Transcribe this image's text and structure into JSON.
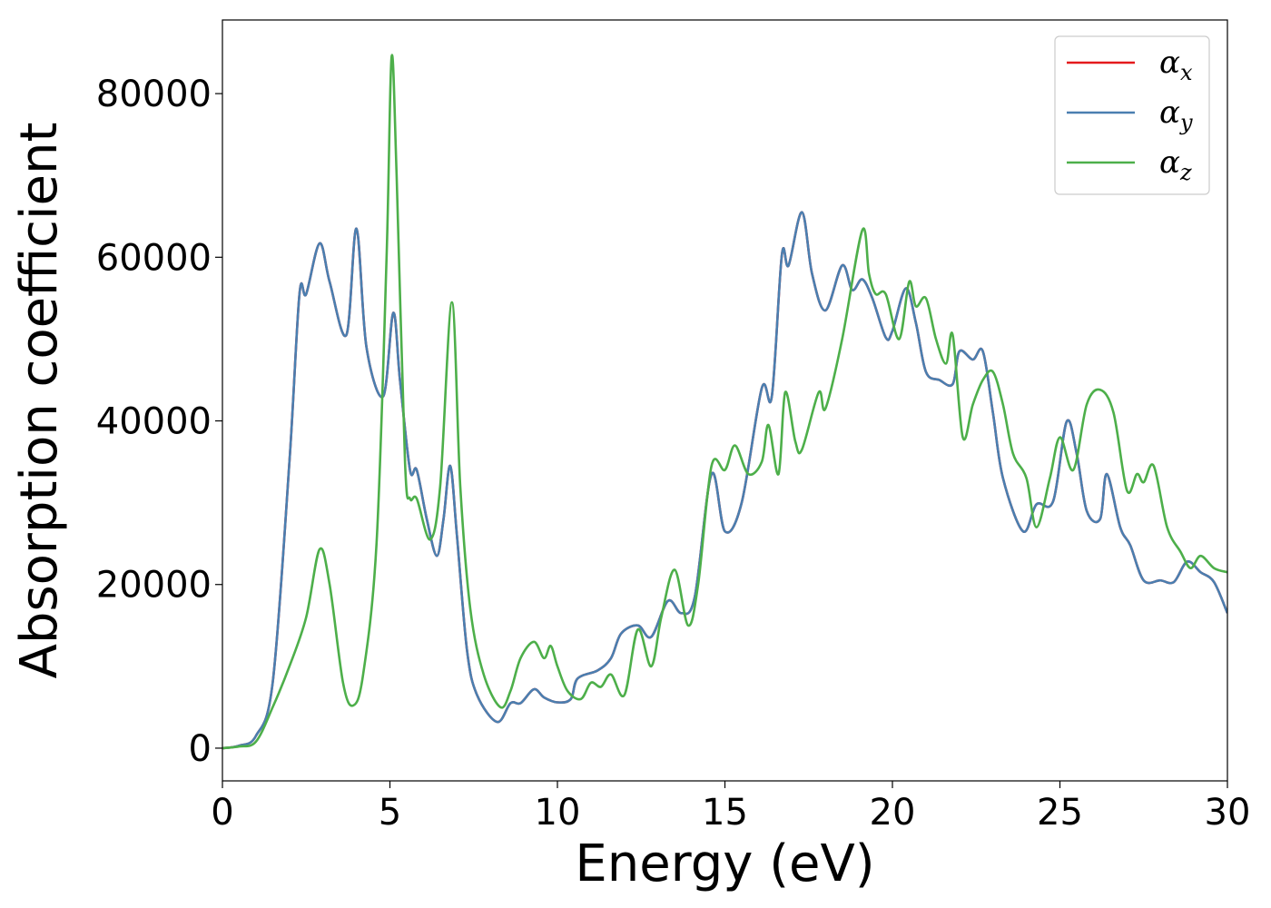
{
  "chart_data": {
    "type": "line",
    "title": "",
    "xlabel": "Energy (eV)",
    "ylabel": "Absorption coefficient",
    "xlim": [
      0,
      30
    ],
    "ylim": [
      -4000,
      89000
    ],
    "xticks": [
      0,
      5,
      10,
      15,
      20,
      25,
      30
    ],
    "xtick_labels": [
      "0",
      "5",
      "10",
      "15",
      "20",
      "25",
      "30"
    ],
    "yticks": [
      0,
      20000,
      40000,
      60000,
      80000
    ],
    "ytick_labels": [
      "0",
      "20000",
      "40000",
      "60000",
      "80000"
    ],
    "grid": false,
    "legend_position": "top-right",
    "series": [
      {
        "name": "α_x",
        "symbol": "α",
        "subscript": "x",
        "color": "#e41a1c",
        "points": [
          [
            0,
            0
          ],
          [
            0.5,
            300
          ],
          [
            1,
            1500
          ],
          [
            1.5,
            8000
          ],
          [
            2,
            35000
          ],
          [
            2.3,
            55500
          ],
          [
            2.5,
            55500
          ],
          [
            2.9,
            61700
          ],
          [
            3.2,
            57000
          ],
          [
            3.7,
            50500
          ],
          [
            4.0,
            63500
          ],
          [
            4.3,
            49000
          ],
          [
            4.8,
            43000
          ],
          [
            5.1,
            53200
          ],
          [
            5.3,
            45000
          ],
          [
            5.6,
            34000
          ],
          [
            5.8,
            34000
          ],
          [
            6.1,
            28000
          ],
          [
            6.4,
            23500
          ],
          [
            6.6,
            28000
          ],
          [
            6.8,
            34500
          ],
          [
            7.0,
            26000
          ],
          [
            7.3,
            12000
          ],
          [
            7.6,
            6500
          ],
          [
            8.2,
            3200
          ],
          [
            8.6,
            5500
          ],
          [
            8.9,
            5500
          ],
          [
            9.3,
            7200
          ],
          [
            9.6,
            6200
          ],
          [
            10.0,
            5600
          ],
          [
            10.4,
            6000
          ],
          [
            10.6,
            8500
          ],
          [
            11.2,
            9500
          ],
          [
            11.6,
            11000
          ],
          [
            11.9,
            14000
          ],
          [
            12.4,
            15000
          ],
          [
            12.8,
            13600
          ],
          [
            13.3,
            18000
          ],
          [
            13.7,
            16500
          ],
          [
            14.1,
            18500
          ],
          [
            14.6,
            33500
          ],
          [
            15.0,
            26500
          ],
          [
            15.5,
            30000
          ],
          [
            16.1,
            44000
          ],
          [
            16.4,
            43000
          ],
          [
            16.7,
            60300
          ],
          [
            16.9,
            59000
          ],
          [
            17.3,
            65500
          ],
          [
            17.6,
            58000
          ],
          [
            18.0,
            53500
          ],
          [
            18.5,
            59000
          ],
          [
            18.8,
            56000
          ],
          [
            19.1,
            57300
          ],
          [
            19.4,
            55000
          ],
          [
            19.8,
            50200
          ],
          [
            20.0,
            51000
          ],
          [
            20.4,
            56200
          ],
          [
            20.7,
            52000
          ],
          [
            21.0,
            46000
          ],
          [
            21.4,
            45000
          ],
          [
            21.8,
            44500
          ],
          [
            22.0,
            48500
          ],
          [
            22.4,
            47500
          ],
          [
            22.7,
            48500
          ],
          [
            23.0,
            41000
          ],
          [
            23.3,
            33000
          ],
          [
            23.9,
            26500
          ],
          [
            24.3,
            29800
          ],
          [
            24.8,
            30200
          ],
          [
            25.2,
            39900
          ],
          [
            25.5,
            36000
          ],
          [
            25.8,
            29000
          ],
          [
            26.2,
            28000
          ],
          [
            26.4,
            33500
          ],
          [
            26.8,
            27000
          ],
          [
            27.1,
            24800
          ],
          [
            27.5,
            20500
          ],
          [
            28.0,
            20500
          ],
          [
            28.4,
            20300
          ],
          [
            28.8,
            22800
          ],
          [
            29.2,
            21500
          ],
          [
            29.6,
            20300
          ],
          [
            30.0,
            16500
          ]
        ]
      },
      {
        "name": "α_y",
        "symbol": "α",
        "subscript": "y",
        "color": "#4a7fb0",
        "points": [
          [
            0,
            0
          ],
          [
            0.5,
            300
          ],
          [
            1,
            1500
          ],
          [
            1.5,
            8000
          ],
          [
            2,
            35000
          ],
          [
            2.3,
            55500
          ],
          [
            2.5,
            55500
          ],
          [
            2.9,
            61700
          ],
          [
            3.2,
            57000
          ],
          [
            3.7,
            50500
          ],
          [
            4.0,
            63500
          ],
          [
            4.3,
            49000
          ],
          [
            4.8,
            43000
          ],
          [
            5.1,
            53200
          ],
          [
            5.3,
            45000
          ],
          [
            5.6,
            34000
          ],
          [
            5.8,
            34000
          ],
          [
            6.1,
            28000
          ],
          [
            6.4,
            23500
          ],
          [
            6.6,
            28000
          ],
          [
            6.8,
            34500
          ],
          [
            7.0,
            26000
          ],
          [
            7.3,
            12000
          ],
          [
            7.6,
            6500
          ],
          [
            8.2,
            3200
          ],
          [
            8.6,
            5500
          ],
          [
            8.9,
            5500
          ],
          [
            9.3,
            7200
          ],
          [
            9.6,
            6200
          ],
          [
            10.0,
            5600
          ],
          [
            10.4,
            6000
          ],
          [
            10.6,
            8500
          ],
          [
            11.2,
            9500
          ],
          [
            11.6,
            11000
          ],
          [
            11.9,
            14000
          ],
          [
            12.4,
            15000
          ],
          [
            12.8,
            13600
          ],
          [
            13.3,
            18000
          ],
          [
            13.7,
            16500
          ],
          [
            14.1,
            18500
          ],
          [
            14.6,
            33500
          ],
          [
            15.0,
            26500
          ],
          [
            15.5,
            30000
          ],
          [
            16.1,
            44000
          ],
          [
            16.4,
            43000
          ],
          [
            16.7,
            60300
          ],
          [
            16.9,
            59000
          ],
          [
            17.3,
            65500
          ],
          [
            17.6,
            58000
          ],
          [
            18.0,
            53500
          ],
          [
            18.5,
            59000
          ],
          [
            18.8,
            56000
          ],
          [
            19.1,
            57300
          ],
          [
            19.4,
            55000
          ],
          [
            19.8,
            50200
          ],
          [
            20.0,
            51000
          ],
          [
            20.4,
            56200
          ],
          [
            20.7,
            52000
          ],
          [
            21.0,
            46000
          ],
          [
            21.4,
            45000
          ],
          [
            21.8,
            44500
          ],
          [
            22.0,
            48500
          ],
          [
            22.4,
            47500
          ],
          [
            22.7,
            48500
          ],
          [
            23.0,
            41000
          ],
          [
            23.3,
            33000
          ],
          [
            23.9,
            26500
          ],
          [
            24.3,
            29800
          ],
          [
            24.8,
            30200
          ],
          [
            25.2,
            39900
          ],
          [
            25.5,
            36000
          ],
          [
            25.8,
            29000
          ],
          [
            26.2,
            28000
          ],
          [
            26.4,
            33500
          ],
          [
            26.8,
            27000
          ],
          [
            27.1,
            24800
          ],
          [
            27.5,
            20500
          ],
          [
            28.0,
            20500
          ],
          [
            28.4,
            20300
          ],
          [
            28.8,
            22800
          ],
          [
            29.2,
            21500
          ],
          [
            29.6,
            20300
          ],
          [
            30.0,
            16500
          ]
        ]
      },
      {
        "name": "α_z",
        "symbol": "α",
        "subscript": "z",
        "color": "#4daf4a",
        "points": [
          [
            0,
            0
          ],
          [
            0.5,
            200
          ],
          [
            1,
            800
          ],
          [
            1.5,
            5000
          ],
          [
            2,
            10000
          ],
          [
            2.5,
            16000
          ],
          [
            2.9,
            24300
          ],
          [
            3.2,
            20000
          ],
          [
            3.6,
            8000
          ],
          [
            3.9,
            5200
          ],
          [
            4.2,
            9000
          ],
          [
            4.6,
            25000
          ],
          [
            4.9,
            60000
          ],
          [
            5.05,
            84500
          ],
          [
            5.2,
            70000
          ],
          [
            5.45,
            35000
          ],
          [
            5.6,
            30500
          ],
          [
            5.8,
            30500
          ],
          [
            6.2,
            25500
          ],
          [
            6.5,
            32000
          ],
          [
            6.85,
            54500
          ],
          [
            7.1,
            32000
          ],
          [
            7.4,
            17000
          ],
          [
            7.8,
            9000
          ],
          [
            8.3,
            5000
          ],
          [
            8.6,
            7000
          ],
          [
            8.9,
            11000
          ],
          [
            9.3,
            13000
          ],
          [
            9.6,
            11000
          ],
          [
            9.8,
            12500
          ],
          [
            10.0,
            10000
          ],
          [
            10.3,
            7000
          ],
          [
            10.7,
            6000
          ],
          [
            11.0,
            8000
          ],
          [
            11.3,
            7500
          ],
          [
            11.6,
            9000
          ],
          [
            12.0,
            6500
          ],
          [
            12.4,
            14500
          ],
          [
            12.8,
            10000
          ],
          [
            13.1,
            16000
          ],
          [
            13.5,
            21800
          ],
          [
            13.9,
            15000
          ],
          [
            14.2,
            20000
          ],
          [
            14.6,
            34500
          ],
          [
            15.0,
            34000
          ],
          [
            15.3,
            37000
          ],
          [
            15.7,
            33500
          ],
          [
            16.1,
            35000
          ],
          [
            16.3,
            39500
          ],
          [
            16.6,
            33500
          ],
          [
            16.8,
            43500
          ],
          [
            17.1,
            37500
          ],
          [
            17.3,
            36500
          ],
          [
            17.8,
            43500
          ],
          [
            18.0,
            41500
          ],
          [
            18.5,
            50000
          ],
          [
            19.1,
            63300
          ],
          [
            19.3,
            58000
          ],
          [
            19.5,
            55500
          ],
          [
            19.8,
            55500
          ],
          [
            20.2,
            50000
          ],
          [
            20.5,
            57000
          ],
          [
            20.7,
            54000
          ],
          [
            21.0,
            55000
          ],
          [
            21.3,
            50000
          ],
          [
            21.6,
            47000
          ],
          [
            21.8,
            50500
          ],
          [
            22.1,
            38000
          ],
          [
            22.4,
            42000
          ],
          [
            22.7,
            45000
          ],
          [
            23.0,
            46000
          ],
          [
            23.3,
            42000
          ],
          [
            23.6,
            36000
          ],
          [
            24.0,
            33000
          ],
          [
            24.3,
            27000
          ],
          [
            24.7,
            33000
          ],
          [
            25.0,
            38000
          ],
          [
            25.4,
            34000
          ],
          [
            25.8,
            42000
          ],
          [
            26.2,
            43800
          ],
          [
            26.6,
            41000
          ],
          [
            27.0,
            31500
          ],
          [
            27.3,
            33500
          ],
          [
            27.5,
            32500
          ],
          [
            27.8,
            34500
          ],
          [
            28.2,
            27000
          ],
          [
            28.6,
            24000
          ],
          [
            28.9,
            22000
          ],
          [
            29.2,
            23500
          ],
          [
            29.6,
            22000
          ],
          [
            30.0,
            21500
          ]
        ]
      }
    ]
  }
}
